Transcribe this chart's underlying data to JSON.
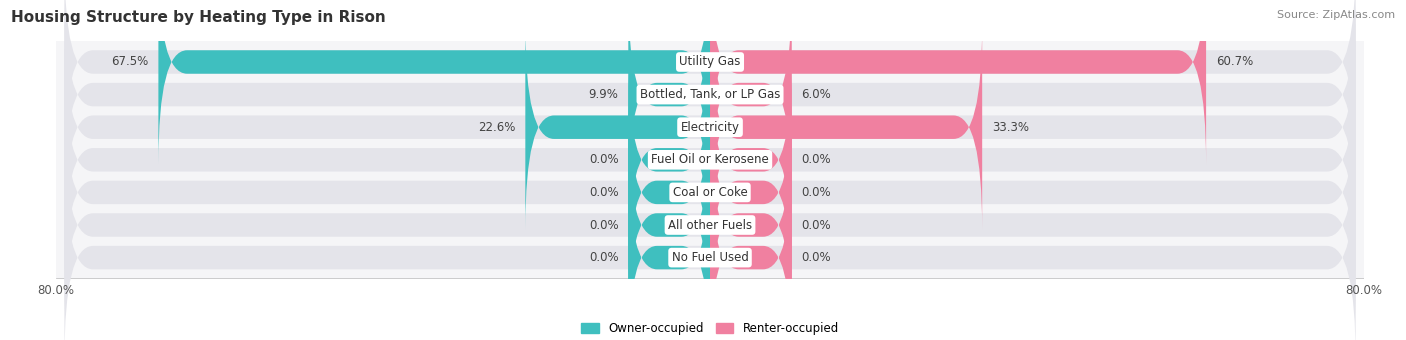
{
  "title": "Housing Structure by Heating Type in Rison",
  "source": "Source: ZipAtlas.com",
  "categories": [
    "Utility Gas",
    "Bottled, Tank, or LP Gas",
    "Electricity",
    "Fuel Oil or Kerosene",
    "Coal or Coke",
    "All other Fuels",
    "No Fuel Used"
  ],
  "owner_values": [
    67.5,
    9.9,
    22.6,
    0.0,
    0.0,
    0.0,
    0.0
  ],
  "renter_values": [
    60.7,
    6.0,
    33.3,
    0.0,
    0.0,
    0.0,
    0.0
  ],
  "owner_color": "#3FBFBF",
  "renter_color": "#F080A0",
  "bar_bg_color": "#E4E4EA",
  "row_bg_color": "#EFEFEF",
  "min_bar_width": 10.0,
  "x_min": -80.0,
  "x_max": 80.0,
  "owner_label": "Owner-occupied",
  "renter_label": "Renter-occupied",
  "title_fontsize": 11,
  "source_fontsize": 8,
  "label_fontsize": 8.5,
  "category_fontsize": 8.5,
  "white_text_threshold": 15.0
}
